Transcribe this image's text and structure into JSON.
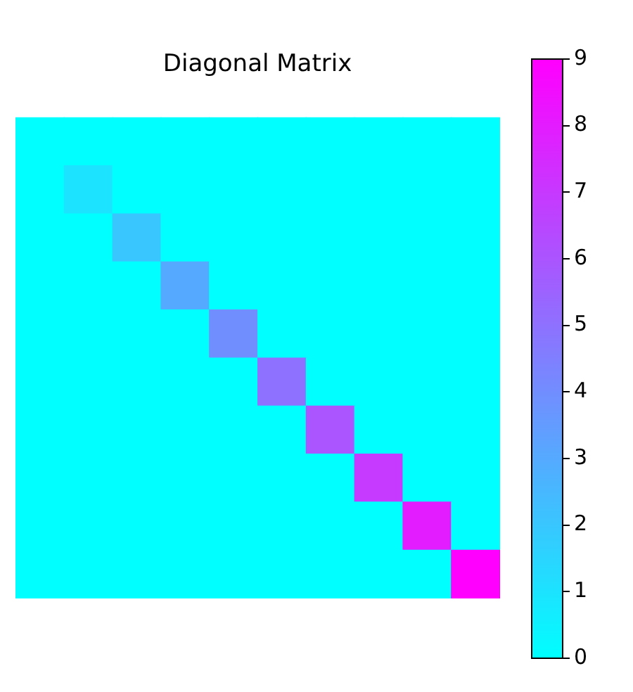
{
  "chart_data": {
    "type": "heatmap",
    "title": "Diagonal Matrix",
    "tick_labels": false,
    "categories": [
      null,
      null,
      null,
      null,
      null,
      null,
      null,
      null,
      null,
      null
    ],
    "y_categories": [
      null,
      null,
      null,
      null,
      null,
      null,
      null,
      null,
      null,
      null
    ],
    "cells": [
      [
        0,
        0,
        0,
        0,
        0,
        0,
        0,
        0,
        0,
        0
      ],
      [
        0,
        1,
        0,
        0,
        0,
        0,
        0,
        0,
        0,
        0
      ],
      [
        0,
        0,
        2,
        0,
        0,
        0,
        0,
        0,
        0,
        0
      ],
      [
        0,
        0,
        0,
        3,
        0,
        0,
        0,
        0,
        0,
        0
      ],
      [
        0,
        0,
        0,
        0,
        4,
        0,
        0,
        0,
        0,
        0
      ],
      [
        0,
        0,
        0,
        0,
        0,
        5,
        0,
        0,
        0,
        0
      ],
      [
        0,
        0,
        0,
        0,
        0,
        0,
        6,
        0,
        0,
        0
      ],
      [
        0,
        0,
        0,
        0,
        0,
        0,
        0,
        7,
        0,
        0
      ],
      [
        0,
        0,
        0,
        0,
        0,
        0,
        0,
        0,
        8,
        0
      ],
      [
        0,
        0,
        0,
        0,
        0,
        0,
        0,
        0,
        0,
        9
      ]
    ],
    "clim": [
      0,
      9
    ],
    "cticks": [
      0,
      1,
      2,
      3,
      4,
      5,
      6,
      7,
      8,
      9
    ]
  }
}
